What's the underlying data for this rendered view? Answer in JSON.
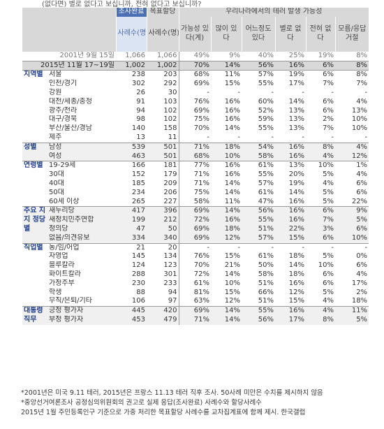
{
  "top_fragment": "(없다면) 별로 없다고 보십니까, 전혀 없다고 보십니까?",
  "header": {
    "sample_done": "조사완료",
    "sample_done_unit": "사례수(명)",
    "sample_target": "목표할당",
    "sample_target_unit": "사례수(명)",
    "group_title": "우리나라에서의 테러 발생 가능성",
    "cols": [
      "가능성 있다(계)",
      "많이 있다",
      "어느정도 있다",
      "별로 없다",
      "전혀 없다",
      "모름/응답거절"
    ]
  },
  "rows_top": [
    {
      "label": "2001년 9월 15일",
      "done": "1,066",
      "target": "1,066",
      "vals": [
        "49%",
        "9%",
        "40%",
        "25%",
        "19%",
        "8%"
      ]
    },
    {
      "label": "2015년 11월 17~19일",
      "done": "1,002",
      "target": "1,002",
      "vals": [
        "70%",
        "14%",
        "56%",
        "16%",
        "6%",
        "8%"
      ]
    }
  ],
  "groups": [
    {
      "cat": "지역별",
      "rows": [
        {
          "sub": "서울",
          "done": "238",
          "target": "203",
          "vals": [
            "68%",
            "11%",
            "57%",
            "19%",
            "6%",
            "8%"
          ]
        },
        {
          "sub": "인천/경기",
          "done": "302",
          "target": "292",
          "vals": [
            "69%",
            "15%",
            "55%",
            "17%",
            "7%",
            "7%"
          ]
        },
        {
          "sub": "강원",
          "done": "26",
          "target": "30",
          "vals": [
            "-",
            "-",
            "-",
            "-",
            "-",
            "-"
          ]
        },
        {
          "sub": "대전/세종/충청",
          "done": "91",
          "target": "103",
          "vals": [
            "76%",
            "16%",
            "60%",
            "14%",
            "6%",
            "4%"
          ]
        },
        {
          "sub": "광주/전라",
          "done": "94",
          "target": "102",
          "vals": [
            "69%",
            "16%",
            "52%",
            "13%",
            "6%",
            "13%"
          ]
        },
        {
          "sub": "대구/경북",
          "done": "98",
          "target": "102",
          "vals": [
            "75%",
            "16%",
            "59%",
            "13%",
            "2%",
            "10%"
          ]
        },
        {
          "sub": "부산/울산/경남",
          "done": "140",
          "target": "158",
          "vals": [
            "70%",
            "14%",
            "55%",
            "13%",
            "7%",
            "10%"
          ]
        },
        {
          "sub": "제주",
          "done": "13",
          "target": "11",
          "vals": [
            "-",
            "-",
            "-",
            "-",
            "-",
            "-"
          ]
        }
      ]
    },
    {
      "cat": "성별",
      "rows": [
        {
          "sub": "남성",
          "done": "539",
          "target": "501",
          "vals": [
            "71%",
            "18%",
            "54%",
            "16%",
            "8%",
            "4%"
          ]
        },
        {
          "sub": "여성",
          "done": "463",
          "target": "501",
          "vals": [
            "68%",
            "10%",
            "58%",
            "16%",
            "4%",
            "12%"
          ]
        }
      ]
    },
    {
      "cat": "연령별",
      "rows": [
        {
          "sub": "19-29세",
          "done": "166",
          "target": "181",
          "vals": [
            "77%",
            "16%",
            "61%",
            "13%",
            "10%",
            "1%"
          ]
        },
        {
          "sub": "30대",
          "done": "152",
          "target": "179",
          "vals": [
            "71%",
            "16%",
            "55%",
            "20%",
            "5%",
            "4%"
          ]
        },
        {
          "sub": "40대",
          "done": "185",
          "target": "209",
          "vals": [
            "71%",
            "14%",
            "57%",
            "19%",
            "4%",
            "6%"
          ]
        },
        {
          "sub": "50대",
          "done": "234",
          "target": "206",
          "vals": [
            "75%",
            "14%",
            "61%",
            "14%",
            "5%",
            "6%"
          ]
        },
        {
          "sub": "60세 이상",
          "done": "265",
          "target": "227",
          "vals": [
            "58%",
            "11%",
            "47%",
            "16%",
            "5%",
            "22%"
          ]
        }
      ]
    },
    {
      "cat": "주요 지지 정당별",
      "rows": [
        {
          "sub": "새누리당",
          "done": "417",
          "target": "396",
          "vals": [
            "69%",
            "14%",
            "56%",
            "16%",
            "6%",
            "9%"
          ]
        },
        {
          "sub": "새정치민주연합",
          "done": "199",
          "target": "212",
          "vals": [
            "72%",
            "16%",
            "55%",
            "16%",
            "7%",
            "5%"
          ]
        },
        {
          "sub": "정의당",
          "done": "47",
          "target": "50",
          "vals": [
            "69%",
            "18%",
            "51%",
            "22%",
            "3%",
            "6%"
          ]
        },
        {
          "sub": "없음/의견유보",
          "done": "334",
          "target": "340",
          "vals": [
            "69%",
            "12%",
            "57%",
            "15%",
            "6%",
            "10%"
          ]
        }
      ]
    },
    {
      "cat": "직업별",
      "rows": [
        {
          "sub": "농/임/어업",
          "done": "21",
          "target": "20",
          "vals": [
            "-",
            "-",
            "-",
            "-",
            "-",
            "-"
          ]
        },
        {
          "sub": "자영업",
          "done": "145",
          "target": "134",
          "vals": [
            "76%",
            "15%",
            "61%",
            "18%",
            "5%",
            "0%"
          ]
        },
        {
          "sub": "블루칼라",
          "done": "124",
          "target": "123",
          "vals": [
            "70%",
            "21%",
            "50%",
            "14%",
            "10%",
            "6%"
          ]
        },
        {
          "sub": "화이트칼라",
          "done": "288",
          "target": "301",
          "vals": [
            "72%",
            "14%",
            "58%",
            "18%",
            "6%",
            "4%"
          ]
        },
        {
          "sub": "가정주부",
          "done": "230",
          "target": "233",
          "vals": [
            "61%",
            "10%",
            "51%",
            "16%",
            "6%",
            "17%"
          ]
        },
        {
          "sub": "학생",
          "done": "88",
          "target": "94",
          "vals": [
            "81%",
            "15%",
            "66%",
            "12%",
            "5%",
            "2%"
          ]
        },
        {
          "sub": "무직/은퇴/기타",
          "done": "106",
          "target": "97",
          "vals": [
            "63%",
            "12%",
            "51%",
            "15%",
            "4%",
            "18%"
          ]
        }
      ]
    },
    {
      "cat": "대통령 직무",
      "rows": [
        {
          "sub": "긍정 평가자",
          "done": "445",
          "target": "420",
          "vals": [
            "69%",
            "14%",
            "55%",
            "16%",
            "4%",
            "11%"
          ]
        },
        {
          "sub": "부정 평가자",
          "done": "453",
          "target": "479",
          "vals": [
            "71%",
            "14%",
            "56%",
            "17%",
            "8%",
            "5%"
          ]
        }
      ]
    }
  ],
  "notes": [
    "*2001년은 미국 9.11 테러, 2015년은 프랑스 11.13 테러 직후 조사. 50사례 미만은 수치를 제시하지 않음",
    "*중앙선거여론조사 공정심의위원회의 권고로 실제 응답(조사완료) 사례수와 할당사례수",
    " 2015년 1월 주민등록인구 기준으로 가중 처리한 목표할당 사례수를 교차집계표에 함께 제시. 한국갤럽"
  ]
}
